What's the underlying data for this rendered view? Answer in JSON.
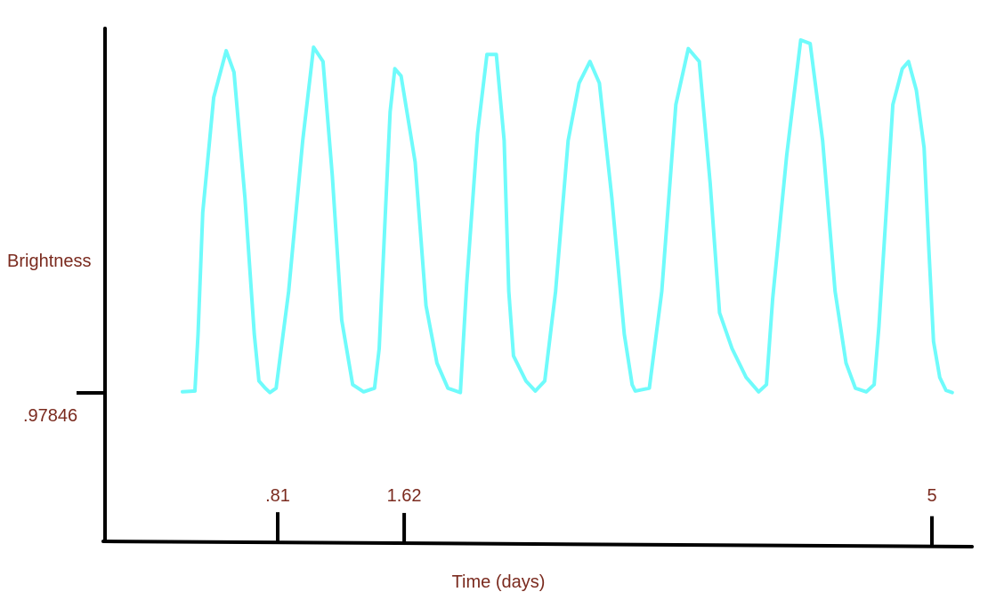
{
  "chart_data": {
    "type": "line",
    "title": "",
    "xlabel": "Time (days)",
    "ylabel": "Brightness",
    "x_ticks": [
      {
        "value": 0.81,
        "label": ".81"
      },
      {
        "value": 1.62,
        "label": "1.62"
      },
      {
        "value": 5,
        "label": "5"
      }
    ],
    "y_ticks": [
      {
        "value": 0.97846,
        "label": ".97846"
      }
    ],
    "series": [
      {
        "color": "#6ffbfb",
        "x": [
          0.2,
          0.28,
          0.3,
          0.33,
          0.4,
          0.48,
          0.53,
          0.6,
          0.66,
          0.69,
          0.73,
          0.76,
          0.8,
          0.88,
          0.97,
          1.04,
          1.1,
          1.16,
          1.22,
          1.29,
          1.36,
          1.43,
          1.46,
          1.5,
          1.53,
          1.56,
          1.6,
          1.69,
          1.76,
          1.83,
          1.9,
          1.98,
          2.02,
          2.09,
          2.15,
          2.21,
          2.26,
          2.29,
          2.32,
          2.4,
          2.46,
          2.52,
          2.59,
          2.67,
          2.74,
          2.81,
          2.87,
          2.95,
          3.03,
          3.08,
          3.1,
          3.19,
          3.27,
          3.36,
          3.44,
          3.51,
          3.58,
          3.64,
          3.72,
          3.81,
          3.89,
          3.94,
          3.98,
          4.07,
          4.16,
          4.22,
          4.3,
          4.38,
          4.45,
          4.51,
          4.58,
          4.63,
          4.66,
          4.71,
          4.75,
          4.81,
          4.85,
          4.9,
          4.95,
          4.98,
          5.01,
          5.05,
          5.09,
          5.13
        ],
        "y": [
          0.98,
          0.981,
          1.06,
          1.23,
          1.39,
          1.455,
          1.425,
          1.25,
          1.06,
          0.995,
          0.985,
          0.979,
          0.985,
          1.12,
          1.33,
          1.46,
          1.44,
          1.28,
          1.08,
          0.99,
          0.98,
          0.985,
          1.04,
          1.23,
          1.37,
          1.43,
          1.42,
          1.3,
          1.1,
          1.02,
          0.985,
          0.979,
          1.13,
          1.34,
          1.45,
          1.45,
          1.33,
          1.12,
          1.03,
          0.995,
          0.981,
          0.995,
          1.12,
          1.33,
          1.41,
          1.44,
          1.41,
          1.25,
          1.06,
          0.99,
          0.981,
          0.985,
          1.12,
          1.38,
          1.458,
          1.44,
          1.27,
          1.09,
          1.04,
          1.0,
          0.98,
          0.99,
          1.11,
          1.31,
          1.47,
          1.465,
          1.33,
          1.12,
          1.02,
          0.985,
          0.98,
          0.99,
          1.07,
          1.24,
          1.38,
          1.43,
          1.44,
          1.4,
          1.32,
          1.18,
          1.05,
          1.0,
          0.982,
          0.979
        ]
      }
    ]
  }
}
